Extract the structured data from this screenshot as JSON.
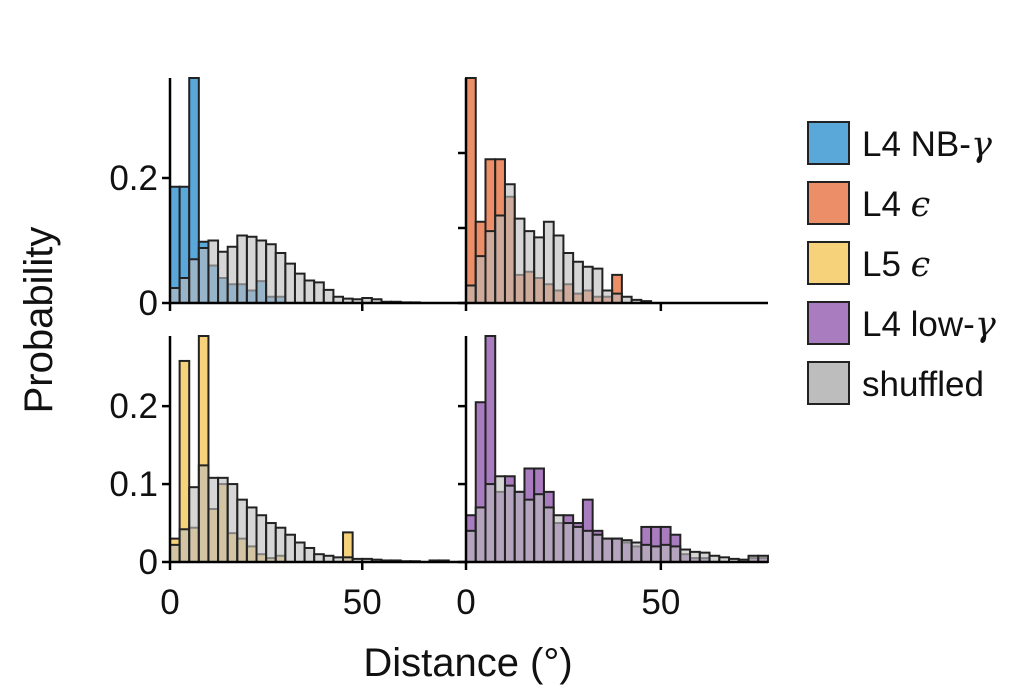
{
  "chart_data": {
    "type": "bar",
    "subtype": "overlaid-histogram-grid",
    "xlabel": "Distance (°)",
    "ylabel": "Probability",
    "bin_width": 2.5,
    "bin_start": 0,
    "xlim": [
      0,
      77.5
    ],
    "xticks": [
      "0",
      "50"
    ],
    "grid": false,
    "legend_position": "right",
    "legend": [
      {
        "label": "L4 NB-",
        "greek": "γ",
        "color": "#5aa7da"
      },
      {
        "label": "L4 ",
        "greek": "ϵ",
        "color": "#ec8e67"
      },
      {
        "label": "L5 ",
        "greek": "ϵ",
        "color": "#f6d27a"
      },
      {
        "label": "L4 low-",
        "greek": "γ",
        "color": "#a97bbf"
      },
      {
        "label": "shuffled",
        "greek": "",
        "color": "#bdbdbd"
      }
    ],
    "panels": [
      {
        "name": "L4 NB-γ",
        "color": "#5aa7da",
        "ylim": [
          0,
          0.36
        ],
        "yticks": [
          0,
          0.2
        ],
        "yticklabels": [
          "0",
          "0.2"
        ],
        "values": [
          0.186,
          0.186,
          0.36,
          0.098,
          0.06,
          0.04,
          0.03,
          0.03,
          0.02,
          0.035,
          0.01,
          0.01,
          0,
          0,
          0,
          0,
          0,
          0,
          0,
          0,
          0,
          0,
          0,
          0,
          0,
          0,
          0,
          0,
          0,
          0,
          0
        ],
        "shuffled": [
          0.024,
          0.04,
          0.07,
          0.088,
          0.1,
          0.082,
          0.09,
          0.108,
          0.106,
          0.1,
          0.094,
          0.08,
          0.063,
          0.047,
          0.036,
          0.033,
          0.021,
          0.01,
          0.007,
          0.006,
          0.008,
          0.006,
          0.002,
          0.002,
          0.001,
          0.001,
          0,
          0,
          0,
          0,
          0
        ]
      },
      {
        "name": "L4 ϵ",
        "color": "#ec8e67",
        "ylim": [
          0,
          0.36
        ],
        "yticks": [
          0,
          0.12,
          0.24
        ],
        "yticklabels": [
          "",
          "",
          ""
        ],
        "values": [
          0.36,
          0.13,
          0.23,
          0.23,
          0.17,
          0.045,
          0.05,
          0.04,
          0.03,
          0.02,
          0.03,
          0.015,
          0.02,
          0.01,
          0.01,
          0.045,
          0,
          0,
          0,
          0,
          0,
          0,
          0,
          0,
          0,
          0,
          0,
          0,
          0,
          0,
          0
        ],
        "shuffled": [
          0.028,
          0.075,
          0.115,
          0.14,
          0.19,
          0.135,
          0.115,
          0.105,
          0.13,
          0.108,
          0.08,
          0.066,
          0.058,
          0.055,
          0.02,
          0.015,
          0.01,
          0.005,
          0.003,
          0,
          0,
          0,
          0,
          0,
          0,
          0,
          0,
          0,
          0,
          0,
          0
        ]
      },
      {
        "name": "L5 ϵ",
        "color": "#f6d27a",
        "ylim": [
          0,
          0.29
        ],
        "yticks": [
          0,
          0.1,
          0.2
        ],
        "yticklabels": [
          "0",
          "0.1",
          "0.2"
        ],
        "values": [
          0.03,
          0.258,
          0.044,
          0.29,
          0.068,
          0.1,
          0.037,
          0.03,
          0.02,
          0.01,
          0.005,
          0.008,
          0,
          0,
          0,
          0,
          0,
          0,
          0.038,
          0,
          0,
          0,
          0,
          0,
          0,
          0,
          0,
          0,
          0,
          0,
          0
        ],
        "shuffled": [
          0.022,
          0.042,
          0.096,
          0.124,
          0.108,
          0.108,
          0.1,
          0.08,
          0.07,
          0.06,
          0.05,
          0.044,
          0.035,
          0.025,
          0.018,
          0.01,
          0.008,
          0.006,
          0.006,
          0.004,
          0.004,
          0.003,
          0.002,
          0.002,
          0.001,
          0.001,
          0,
          0.002,
          0.002,
          0,
          0
        ]
      },
      {
        "name": "L4 low-γ",
        "color": "#a97bbf",
        "ylim": [
          0,
          0.29
        ],
        "yticks": [
          0,
          0.1,
          0.2
        ],
        "yticklabels": [
          "",
          "",
          ""
        ],
        "values": [
          0.06,
          0.205,
          0.29,
          0.09,
          0.11,
          0.09,
          0.12,
          0.12,
          0.09,
          0.05,
          0.06,
          0.05,
          0.08,
          0.04,
          0.03,
          0.03,
          0.025,
          0.02,
          0.045,
          0.045,
          0.045,
          0.035,
          0.01,
          0.005,
          0.005,
          0,
          0,
          0,
          0,
          0.005,
          0.005
        ],
        "shuffled": [
          0.04,
          0.07,
          0.1,
          0.11,
          0.098,
          0.09,
          0.08,
          0.087,
          0.07,
          0.06,
          0.05,
          0.045,
          0.04,
          0.035,
          0.03,
          0.03,
          0.028,
          0.025,
          0.022,
          0.02,
          0.022,
          0.02,
          0.016,
          0.013,
          0.012,
          0.008,
          0.006,
          0.004,
          0.003,
          0.008,
          0.008
        ]
      }
    ]
  }
}
